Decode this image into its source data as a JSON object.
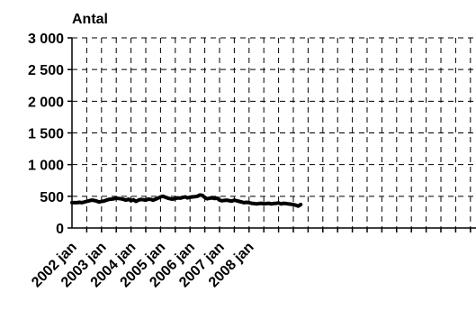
{
  "chart_data": {
    "type": "line",
    "title": "",
    "xlabel": "",
    "ylabel": "Antal",
    "ylim": [
      0,
      3000
    ],
    "yticks": [
      0,
      500,
      1000,
      1500,
      2000,
      2500,
      3000
    ],
    "ytick_labels": [
      "0",
      "500",
      "1 000",
      "1 500",
      "2 000",
      "2 500",
      "3 000"
    ],
    "x_tick_labels": [
      "2002 jan",
      "2003 jan",
      "2004 jan",
      "2005 jan",
      "2006 jan",
      "2007 jan",
      "2008 jan"
    ],
    "x_start": "2002 jan",
    "grid": true,
    "legend": "none",
    "series": [
      {
        "color": "#000000",
        "values": [
          400,
          400,
          400,
          405,
          400,
          410,
          420,
          430,
          440,
          435,
          425,
          410,
          420,
          425,
          440,
          450,
          455,
          460,
          470,
          465,
          460,
          450,
          440,
          455,
          430,
          445,
          420,
          440,
          450,
          445,
          440,
          455,
          450,
          440,
          455,
          470,
          490,
          500,
          485,
          470,
          460,
          455,
          465,
          475,
          470,
          480,
          490,
          475,
          485,
          490,
          495,
          500,
          520,
          515,
          480,
          460,
          470,
          475,
          465,
          470,
          440,
          430,
          435,
          440,
          430,
          425,
          440,
          430,
          420,
          410,
          400,
          405,
          400,
          390,
          385,
          380,
          385,
          390,
          380,
          385,
          390,
          380,
          385,
          390,
          395,
          380,
          390,
          385,
          380,
          375,
          370,
          360,
          345,
          370
        ]
      }
    ]
  }
}
